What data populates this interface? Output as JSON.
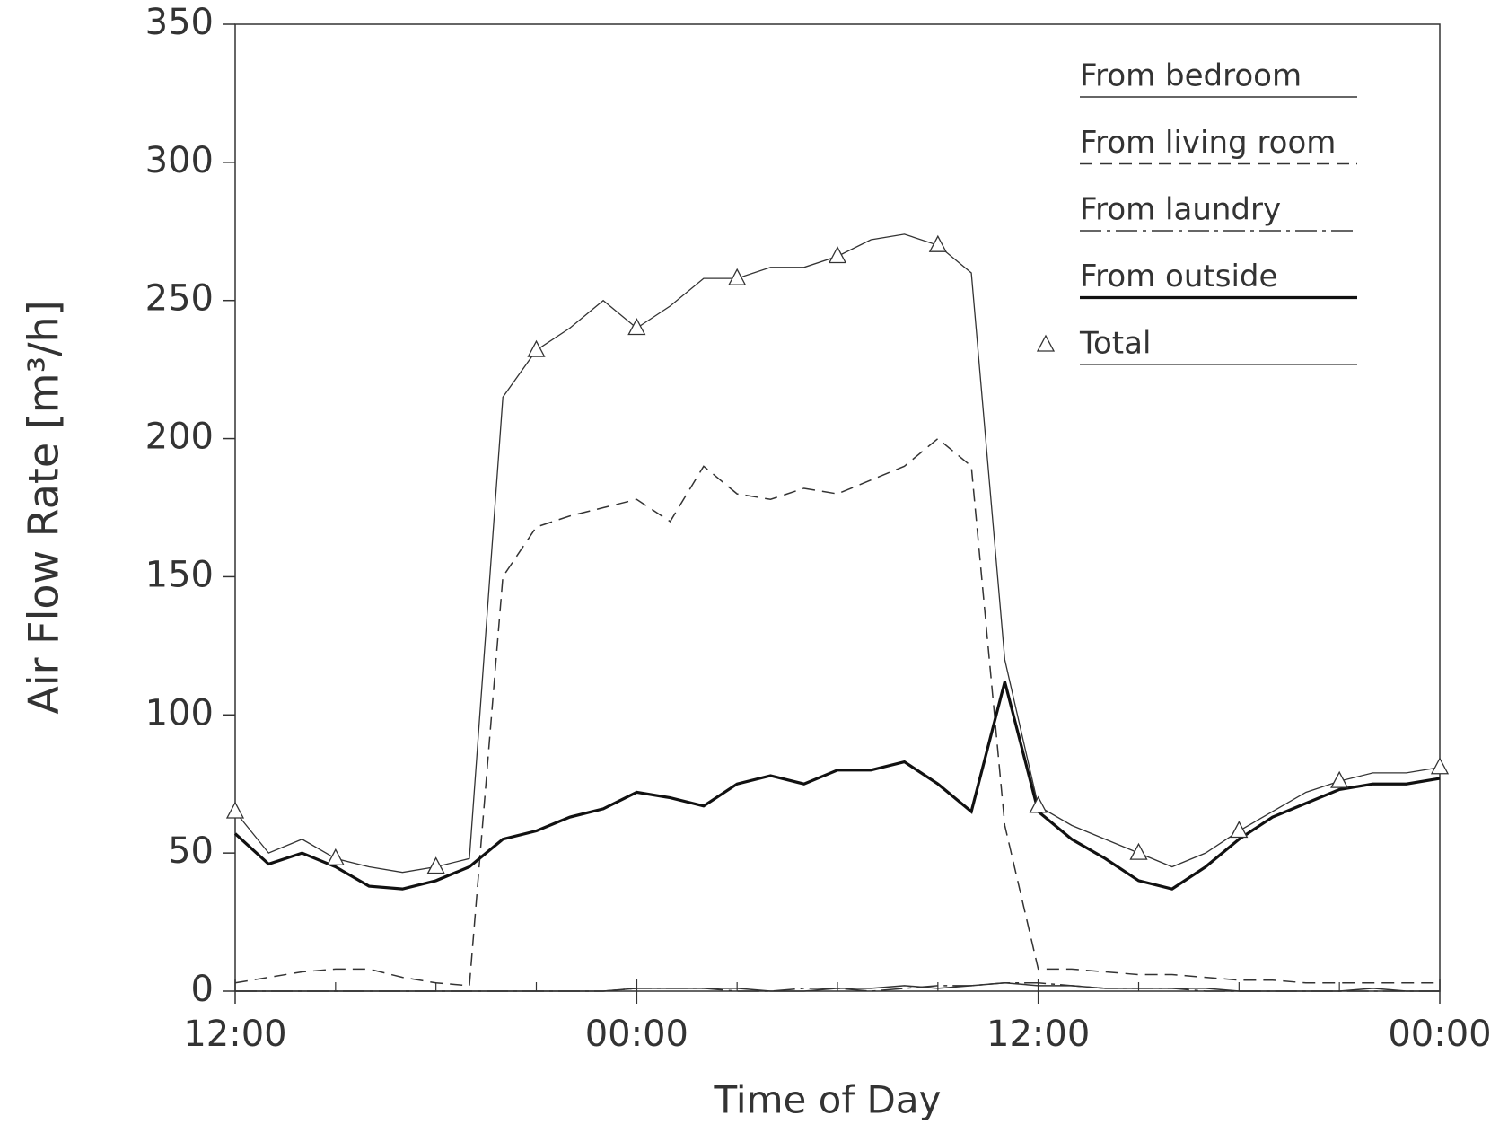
{
  "chart_data": {
    "type": "line",
    "x_label": "Time of Day",
    "y_label": "Air Flow Rate [m³/h]",
    "x": [
      0,
      1,
      2,
      3,
      4,
      5,
      6,
      7,
      8,
      9,
      10,
      11,
      12,
      13,
      14,
      15,
      16,
      17,
      18,
      19,
      20,
      21,
      22,
      23,
      24,
      25,
      26,
      27,
      28,
      29,
      30,
      31,
      32,
      33,
      34,
      35,
      36
    ],
    "xlim": [
      0,
      36
    ],
    "xticks": [
      {
        "value": 0,
        "label": "12:00"
      },
      {
        "value": 12,
        "label": "00:00"
      },
      {
        "value": 24,
        "label": "12:00"
      },
      {
        "value": 36,
        "label": "00:00"
      }
    ],
    "xminor_ticks": [
      3,
      6,
      9,
      15,
      18,
      21,
      27,
      30,
      33
    ],
    "ylim": [
      0,
      350
    ],
    "yticks": [
      0,
      50,
      100,
      150,
      200,
      250,
      300,
      350
    ],
    "legend": "upper right",
    "series": [
      {
        "name": "From bedroom",
        "color": "#333333",
        "style": "solid",
        "values": [
          0,
          0,
          0,
          0,
          0,
          0,
          0,
          0,
          0,
          0,
          0,
          0,
          1,
          1,
          1,
          1,
          0,
          0,
          1,
          1,
          2,
          1,
          2,
          3,
          2,
          2,
          1,
          1,
          1,
          1,
          0,
          0,
          0,
          0,
          1,
          0,
          0
        ]
      },
      {
        "name": "From living room",
        "color": "#333333",
        "style": "dashed",
        "values": [
          3,
          5,
          7,
          8,
          8,
          5,
          3,
          2,
          150,
          168,
          172,
          175,
          178,
          170,
          190,
          180,
          178,
          182,
          180,
          185,
          190,
          200,
          190,
          60,
          8,
          8,
          7,
          6,
          6,
          5,
          4,
          4,
          3,
          3,
          3,
          3,
          3
        ]
      },
      {
        "name": "From laundry",
        "color": "#333333",
        "style": "dashdot",
        "values": [
          0,
          0,
          0,
          0,
          0,
          0,
          0,
          0,
          0,
          0,
          0,
          0,
          1,
          1,
          1,
          0,
          0,
          1,
          1,
          0,
          1,
          2,
          2,
          3,
          3,
          2,
          1,
          1,
          1,
          0,
          0,
          0,
          0,
          0,
          0,
          0,
          0
        ]
      },
      {
        "name": "From outside",
        "color": "#111111",
        "style": "thick",
        "values": [
          57,
          46,
          50,
          45,
          38,
          37,
          40,
          45,
          55,
          58,
          63,
          66,
          72,
          70,
          67,
          75,
          78,
          75,
          80,
          80,
          83,
          75,
          65,
          112,
          65,
          55,
          48,
          40,
          37,
          45,
          55,
          63,
          68,
          73,
          75,
          75,
          77
        ]
      },
      {
        "name": "Total",
        "color": "#333333",
        "style": "triangles",
        "values": [
          65,
          50,
          55,
          48,
          45,
          43,
          45,
          48,
          215,
          232,
          240,
          250,
          240,
          248,
          258,
          258,
          262,
          262,
          266,
          272,
          274,
          270,
          260,
          120,
          67,
          60,
          55,
          50,
          45,
          50,
          58,
          65,
          72,
          76,
          79,
          79,
          81
        ]
      }
    ]
  }
}
